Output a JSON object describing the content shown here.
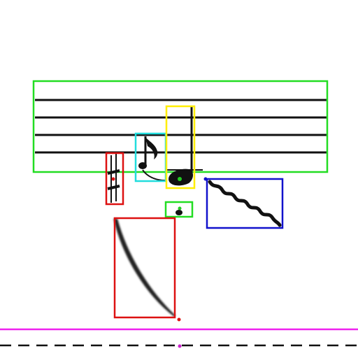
{
  "canvas": {
    "background": "#ffffff"
  },
  "colors": {
    "staff_box": "#22dd22",
    "accidental_box": "#dd1111",
    "eighth_note_box": "#22dddd",
    "quarter_note_box": "#ffee00",
    "dot_box": "#22dd22",
    "glissando_box": "#1111cc",
    "slur_box": "#dd1111",
    "baseline": "#ee22ee",
    "ink": "#111111",
    "point_green": "#22cc22",
    "point_red": "#dd1111",
    "point_blue": "#1111cc",
    "point_magenta": "#cc22cc"
  },
  "symbols": [
    {
      "name": "staff",
      "label": "",
      "box_color": "staff_box"
    },
    {
      "name": "sharp-accidental",
      "label": "",
      "box_color": "accidental_box"
    },
    {
      "name": "eighth-note",
      "label": "",
      "box_color": "eighth_note_box"
    },
    {
      "name": "quarter-note",
      "label": "",
      "box_color": "quarter_note_box"
    },
    {
      "name": "augmentation-dot",
      "label": "",
      "box_color": "dot_box"
    },
    {
      "name": "glissando-wave",
      "label": "",
      "box_color": "glissando_box"
    },
    {
      "name": "slur-curve",
      "label": "",
      "box_color": "slur_box"
    }
  ],
  "baseline": {
    "style": "solid"
  },
  "guide_line": {
    "style": "dashed"
  }
}
